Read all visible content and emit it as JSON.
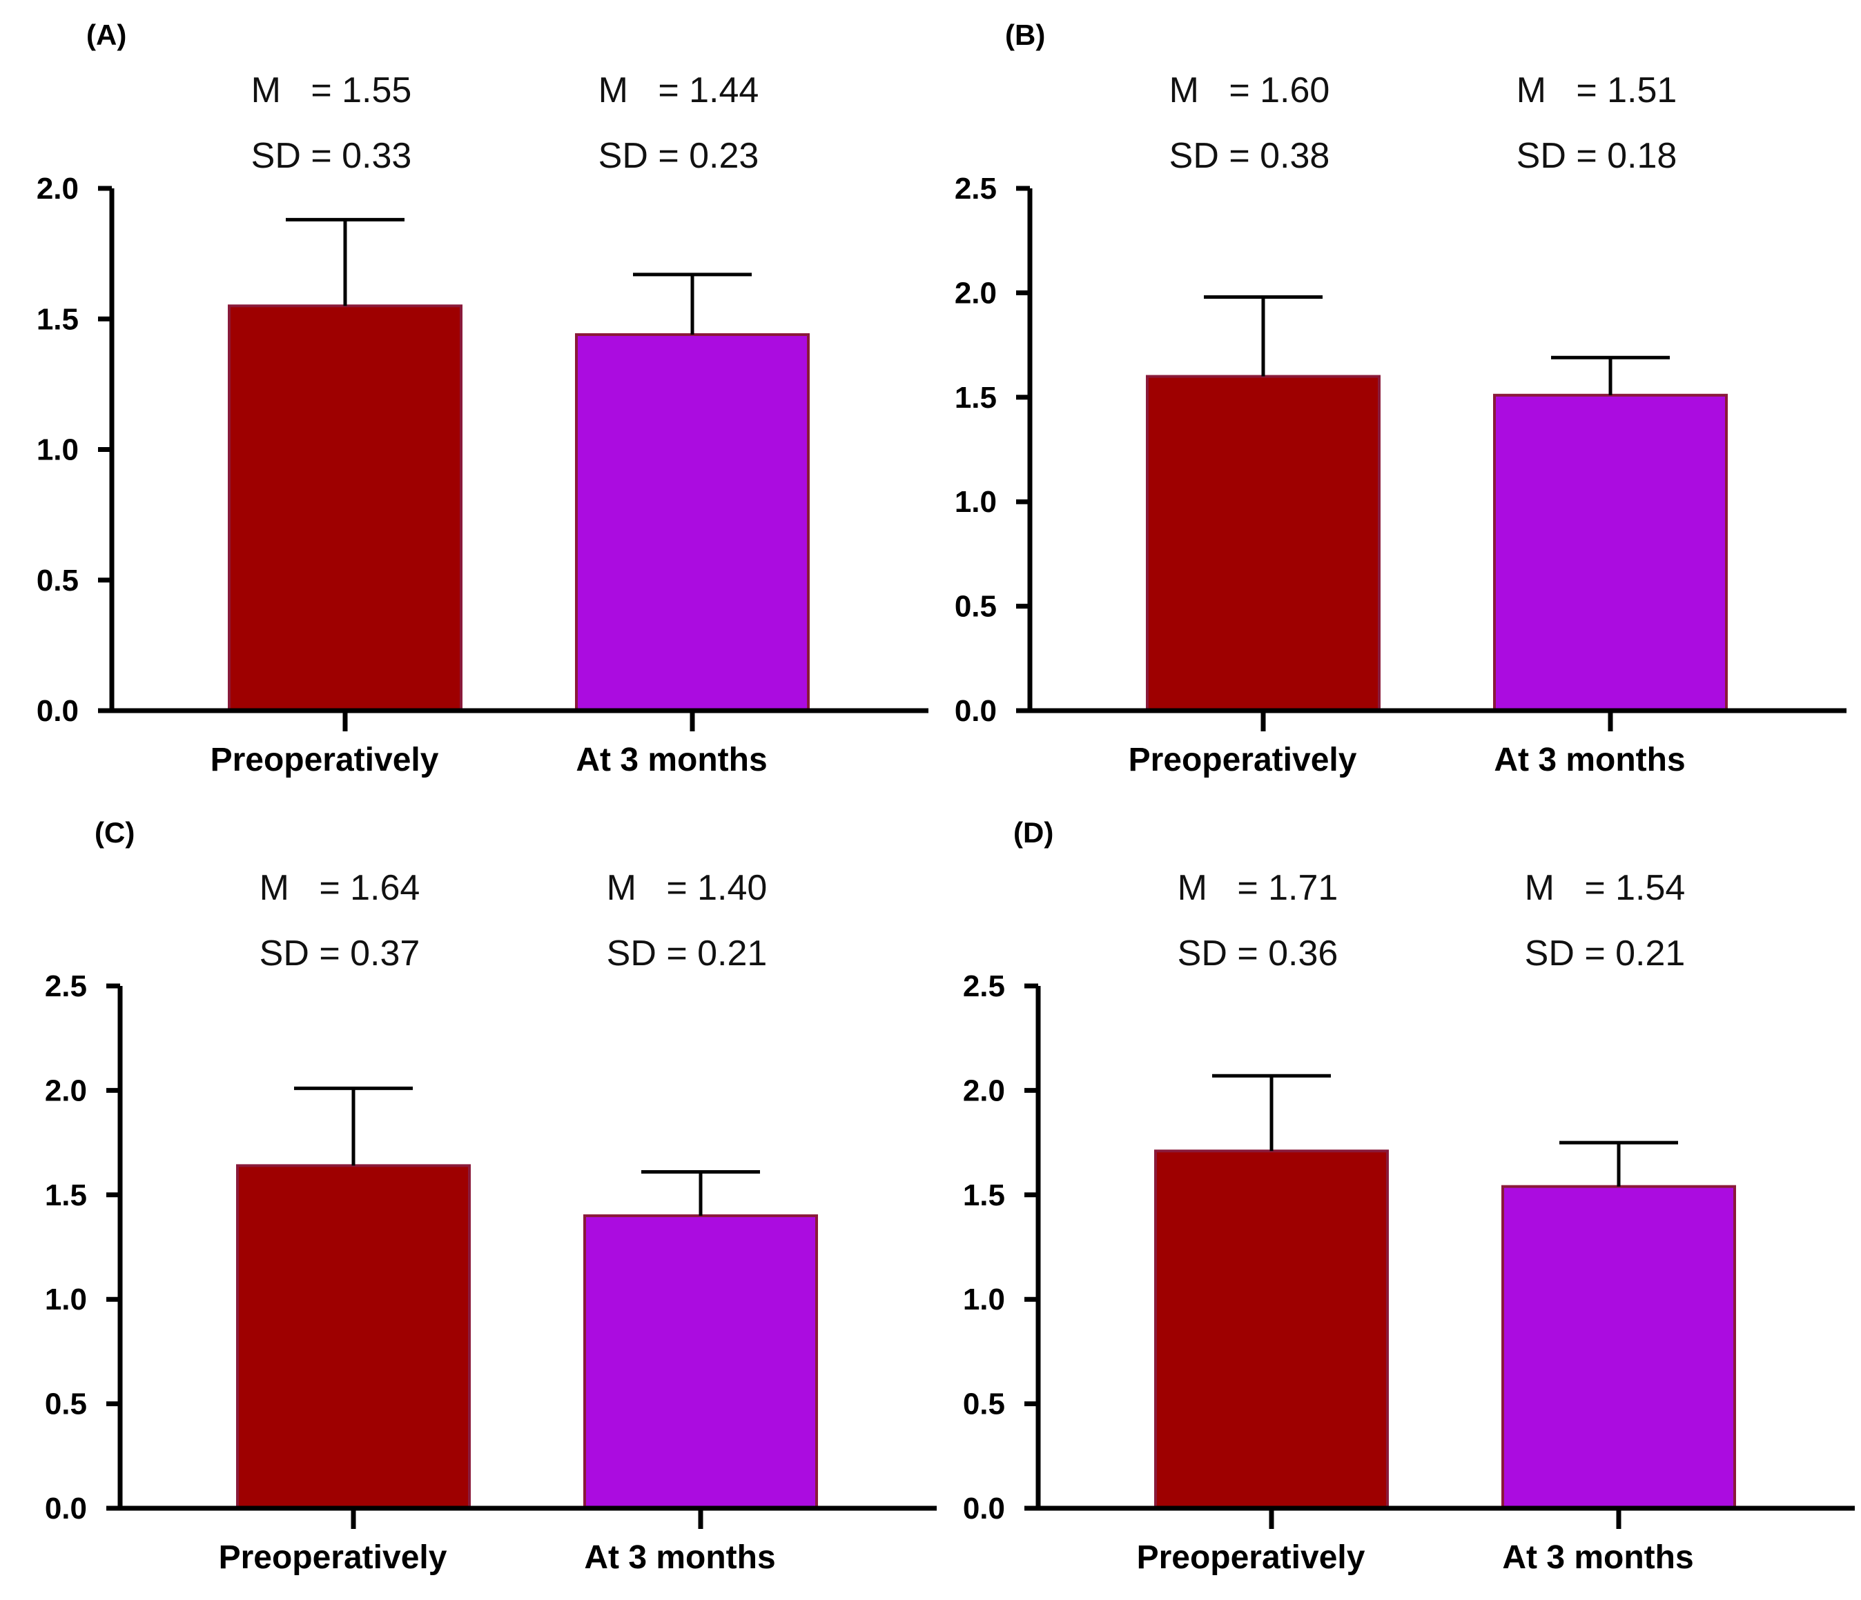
{
  "chart_data": [
    {
      "type": "bar",
      "panel_label": "(A)",
      "categories": [
        "Preoperatively",
        "At 3 months"
      ],
      "values": [
        1.55,
        1.44
      ],
      "errors": [
        0.33,
        0.23
      ],
      "stat_labels": [
        {
          "mean": "M   = 1.55",
          "sd": "SD = 0.33"
        },
        {
          "mean": "M   = 1.44",
          "sd": "SD = 0.23"
        }
      ],
      "ylim": [
        0,
        2.0
      ],
      "yticks": [
        "0.0",
        "0.5",
        "1.0",
        "1.5",
        "2.0"
      ],
      "ytick_values": [
        0,
        0.5,
        1.0,
        1.5,
        2.0
      ],
      "colors": [
        "#9e0000",
        "#ab0ce0"
      ]
    },
    {
      "type": "bar",
      "panel_label": "(B)",
      "categories": [
        "Preoperatively",
        "At 3 months"
      ],
      "values": [
        1.6,
        1.51
      ],
      "errors": [
        0.38,
        0.18
      ],
      "stat_labels": [
        {
          "mean": "M   = 1.60",
          "sd": "SD = 0.38"
        },
        {
          "mean": "M   = 1.51",
          "sd": "SD = 0.18"
        }
      ],
      "ylim": [
        0,
        2.5
      ],
      "yticks": [
        "0.0",
        "0.5",
        "1.0",
        "1.5",
        "2.0",
        "2.5"
      ],
      "ytick_values": [
        0,
        0.5,
        1.0,
        1.5,
        2.0,
        2.5
      ],
      "colors": [
        "#9e0000",
        "#ab0ce0"
      ]
    },
    {
      "type": "bar",
      "panel_label": "(C)",
      "categories": [
        "Preoperatively",
        "At 3 months"
      ],
      "values": [
        1.64,
        1.4
      ],
      "errors": [
        0.37,
        0.21
      ],
      "stat_labels": [
        {
          "mean": "M   = 1.64",
          "sd": "SD = 0.37"
        },
        {
          "mean": "M   = 1.40",
          "sd": "SD = 0.21"
        }
      ],
      "ylim": [
        0,
        2.5
      ],
      "yticks": [
        "0.0",
        "0.5",
        "1.0",
        "1.5",
        "2.0",
        "2.5"
      ],
      "ytick_values": [
        0,
        0.5,
        1.0,
        1.5,
        2.0,
        2.5
      ],
      "colors": [
        "#9e0000",
        "#ab0ce0"
      ]
    },
    {
      "type": "bar",
      "panel_label": "(D)",
      "categories": [
        "Preoperatively",
        "At 3 months"
      ],
      "values": [
        1.71,
        1.54
      ],
      "errors": [
        0.36,
        0.21
      ],
      "stat_labels": [
        {
          "mean": "M   = 1.71",
          "sd": "SD = 0.36"
        },
        {
          "mean": "M   = 1.54",
          "sd": "SD = 0.21"
        }
      ],
      "ylim": [
        0,
        2.5
      ],
      "yticks": [
        "0.0",
        "0.5",
        "1.0",
        "1.5",
        "2.0",
        "2.5"
      ],
      "ytick_values": [
        0,
        0.5,
        1.0,
        1.5,
        2.0,
        2.5
      ],
      "colors": [
        "#9e0000",
        "#ab0ce0"
      ]
    }
  ]
}
